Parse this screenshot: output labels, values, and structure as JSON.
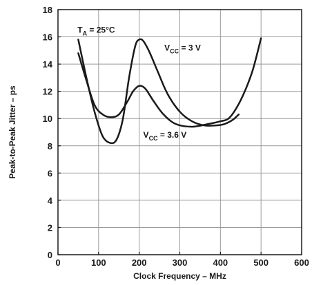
{
  "chart_data": {
    "type": "line",
    "xlabel": "Clock Frequency – MHz",
    "ylabel": "Peak-to-Peak Jitter – ps",
    "xlim": [
      0,
      600
    ],
    "ylim": [
      0,
      18
    ],
    "x_ticks": [
      0,
      100,
      200,
      300,
      400,
      500,
      600
    ],
    "y_ticks": [
      0,
      2,
      4,
      6,
      8,
      10,
      12,
      14,
      16,
      18
    ],
    "grid": true,
    "annotations": [
      {
        "main": "T",
        "sub": "A",
        "tail": " = 25°C",
        "x": 48,
        "y": 16.3
      },
      {
        "main": "V",
        "sub": "CC",
        "tail": " =  3 V",
        "x": 262,
        "y": 15.0
      },
      {
        "main": "V",
        "sub": "CC",
        "tail": " = 3.6 V",
        "x": 210,
        "y": 8.6
      }
    ],
    "series": [
      {
        "label_ref": 1,
        "points": [
          [
            50,
            15.8
          ],
          [
            70,
            13.0
          ],
          [
            90,
            10.5
          ],
          [
            110,
            8.7
          ],
          [
            130,
            8.2
          ],
          [
            145,
            8.5
          ],
          [
            160,
            10.0
          ],
          [
            175,
            13.0
          ],
          [
            190,
            15.3
          ],
          [
            200,
            15.8
          ],
          [
            210,
            15.7
          ],
          [
            225,
            14.9
          ],
          [
            245,
            13.5
          ],
          [
            270,
            11.8
          ],
          [
            300,
            10.5
          ],
          [
            330,
            9.8
          ],
          [
            360,
            9.5
          ],
          [
            390,
            9.5
          ],
          [
            410,
            9.6
          ],
          [
            430,
            9.9
          ],
          [
            445,
            10.3
          ]
        ]
      },
      {
        "label_ref": 2,
        "points": [
          [
            50,
            14.8
          ],
          [
            70,
            12.8
          ],
          [
            90,
            11.0
          ],
          [
            110,
            10.3
          ],
          [
            130,
            10.1
          ],
          [
            150,
            10.3
          ],
          [
            170,
            11.2
          ],
          [
            185,
            12.0
          ],
          [
            200,
            12.4
          ],
          [
            215,
            12.2
          ],
          [
            235,
            11.3
          ],
          [
            260,
            10.3
          ],
          [
            290,
            9.6
          ],
          [
            330,
            9.4
          ],
          [
            370,
            9.6
          ],
          [
            400,
            9.8
          ],
          [
            420,
            10.0
          ],
          [
            440,
            10.8
          ],
          [
            460,
            12.0
          ],
          [
            480,
            13.6
          ],
          [
            500,
            15.9
          ]
        ]
      }
    ]
  }
}
